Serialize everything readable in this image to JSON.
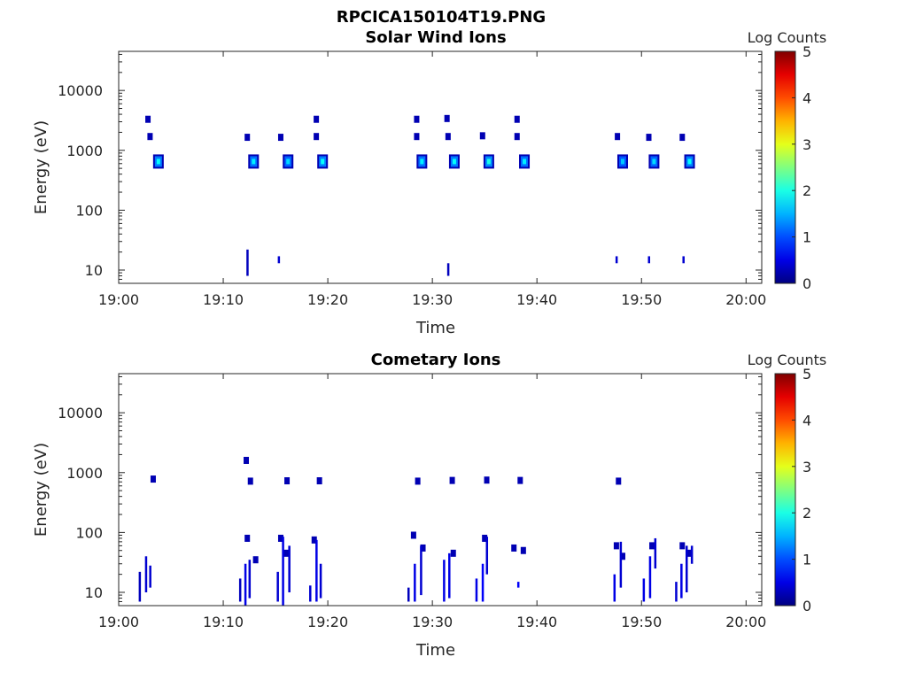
{
  "figure_title": "RPCICA150104T19.PNG",
  "colorbar_colormap": "jet",
  "chart_data": [
    {
      "type": "heatmap",
      "title": "Solar Wind Ions",
      "xlabel": "Time",
      "ylabel": "Energy (eV)",
      "yscale": "log",
      "xticks": [
        "19:00",
        "19:10",
        "19:20",
        "19:30",
        "19:40",
        "19:50",
        "20:00"
      ],
      "xlim_minutes": [
        0,
        61.5
      ],
      "yticks": [
        "10",
        "100",
        "1000",
        "10000"
      ],
      "ylim": [
        6,
        45000
      ],
      "colorbar": {
        "label": "Log Counts",
        "min": 0,
        "max": 5,
        "ticks": [
          "0",
          "1",
          "2",
          "3",
          "4",
          "5"
        ]
      },
      "clusters": [
        {
          "t": 3.0,
          "e": 1700,
          "c": 0.6
        },
        {
          "t": 3.8,
          "e": 650,
          "c": 1.9
        },
        {
          "t": 2.8,
          "e": 3300,
          "c": 0.3
        },
        {
          "t": 12.3,
          "e": 1650,
          "c": 0.5
        },
        {
          "t": 12.9,
          "e": 650,
          "c": 1.8
        },
        {
          "t": 15.5,
          "e": 1650,
          "c": 0.5
        },
        {
          "t": 16.2,
          "e": 650,
          "c": 1.7
        },
        {
          "t": 18.9,
          "e": 1700,
          "c": 0.5
        },
        {
          "t": 19.5,
          "e": 650,
          "c": 1.9
        },
        {
          "t": 18.9,
          "e": 3300,
          "c": 0.3
        },
        {
          "t": 28.5,
          "e": 1700,
          "c": 0.6
        },
        {
          "t": 29.0,
          "e": 650,
          "c": 1.8
        },
        {
          "t": 28.5,
          "e": 3300,
          "c": 0.3
        },
        {
          "t": 31.5,
          "e": 1700,
          "c": 0.6
        },
        {
          "t": 32.1,
          "e": 650,
          "c": 1.9
        },
        {
          "t": 31.4,
          "e": 3400,
          "c": 0.3
        },
        {
          "t": 34.8,
          "e": 1750,
          "c": 0.6
        },
        {
          "t": 35.4,
          "e": 650,
          "c": 2.0
        },
        {
          "t": 38.1,
          "e": 1700,
          "c": 0.6
        },
        {
          "t": 38.8,
          "e": 650,
          "c": 1.8
        },
        {
          "t": 38.1,
          "e": 3300,
          "c": 0.3
        },
        {
          "t": 47.7,
          "e": 1700,
          "c": 0.4
        },
        {
          "t": 48.2,
          "e": 650,
          "c": 1.6
        },
        {
          "t": 50.7,
          "e": 1650,
          "c": 0.5
        },
        {
          "t": 51.2,
          "e": 650,
          "c": 1.7
        },
        {
          "t": 53.9,
          "e": 1650,
          "c": 0.5
        },
        {
          "t": 54.6,
          "e": 650,
          "c": 1.9
        }
      ],
      "lines": [
        {
          "t": 12.3,
          "e1": 8,
          "e2": 22,
          "c": 0.3
        },
        {
          "t": 15.3,
          "e1": 13,
          "e2": 17,
          "c": 0.4
        },
        {
          "t": 31.5,
          "e1": 8,
          "e2": 13,
          "c": 0.3
        },
        {
          "t": 47.6,
          "e1": 13,
          "e2": 17,
          "c": 0.4
        },
        {
          "t": 50.7,
          "e1": 13,
          "e2": 17,
          "c": 0.4
        },
        {
          "t": 54.0,
          "e1": 13,
          "e2": 17,
          "c": 0.4
        }
      ]
    },
    {
      "type": "heatmap",
      "title": "Cometary Ions",
      "xlabel": "Time",
      "ylabel": "Energy (eV)",
      "yscale": "log",
      "xticks": [
        "19:00",
        "19:10",
        "19:20",
        "19:30",
        "19:40",
        "19:50",
        "20:00"
      ],
      "xlim_minutes": [
        0,
        61.5
      ],
      "yticks": [
        "10",
        "100",
        "1000",
        "10000"
      ],
      "ylim": [
        6,
        45000
      ],
      "colorbar": {
        "label": "Log Counts",
        "min": 0,
        "max": 5,
        "ticks": [
          "0",
          "1",
          "2",
          "3",
          "4",
          "5"
        ]
      },
      "clusters": [
        {
          "t": 3.3,
          "e": 780,
          "c": 0.4
        },
        {
          "t": 12.2,
          "e": 1600,
          "c": 0.3
        },
        {
          "t": 12.6,
          "e": 720,
          "c": 0.4
        },
        {
          "t": 16.1,
          "e": 730,
          "c": 0.4
        },
        {
          "t": 19.2,
          "e": 730,
          "c": 0.4
        },
        {
          "t": 28.6,
          "e": 720,
          "c": 0.3
        },
        {
          "t": 31.9,
          "e": 740,
          "c": 0.3
        },
        {
          "t": 35.2,
          "e": 750,
          "c": 0.4
        },
        {
          "t": 38.4,
          "e": 740,
          "c": 0.4
        },
        {
          "t": 47.8,
          "e": 720,
          "c": 0.3
        },
        {
          "t": 12.3,
          "e": 80,
          "c": 0.4
        },
        {
          "t": 13.1,
          "e": 35,
          "c": 0.4
        },
        {
          "t": 15.5,
          "e": 80,
          "c": 0.4
        },
        {
          "t": 16.0,
          "e": 45,
          "c": 0.5
        },
        {
          "t": 18.7,
          "e": 75,
          "c": 0.4
        },
        {
          "t": 28.2,
          "e": 90,
          "c": 0.4
        },
        {
          "t": 29.1,
          "e": 55,
          "c": 0.5
        },
        {
          "t": 32.0,
          "e": 45,
          "c": 0.5
        },
        {
          "t": 35.0,
          "e": 80,
          "c": 0.4
        },
        {
          "t": 37.8,
          "e": 55,
          "c": 0.4
        },
        {
          "t": 38.7,
          "e": 50,
          "c": 0.4
        },
        {
          "t": 47.6,
          "e": 60,
          "c": 0.4
        },
        {
          "t": 48.2,
          "e": 40,
          "c": 0.5
        },
        {
          "t": 51.0,
          "e": 60,
          "c": 0.4
        },
        {
          "t": 53.9,
          "e": 60,
          "c": 0.4
        },
        {
          "t": 54.5,
          "e": 45,
          "c": 0.5
        }
      ],
      "lines": [
        {
          "t": 2.0,
          "e1": 7,
          "e2": 22,
          "c": 0.3
        },
        {
          "t": 2.6,
          "e1": 10,
          "e2": 40,
          "c": 0.4
        },
        {
          "t": 3.0,
          "e1": 12,
          "e2": 28,
          "c": 0.4
        },
        {
          "t": 11.6,
          "e1": 7,
          "e2": 17,
          "c": 0.3
        },
        {
          "t": 12.1,
          "e1": 6,
          "e2": 30,
          "c": 0.5
        },
        {
          "t": 12.5,
          "e1": 8,
          "e2": 35,
          "c": 0.4
        },
        {
          "t": 15.2,
          "e1": 7,
          "e2": 22,
          "c": 0.4
        },
        {
          "t": 15.7,
          "e1": 6,
          "e2": 85,
          "c": 0.5
        },
        {
          "t": 16.3,
          "e1": 10,
          "e2": 60,
          "c": 0.4
        },
        {
          "t": 18.3,
          "e1": 7,
          "e2": 13,
          "c": 0.4
        },
        {
          "t": 18.9,
          "e1": 7,
          "e2": 75,
          "c": 0.5
        },
        {
          "t": 19.3,
          "e1": 8,
          "e2": 30,
          "c": 0.4
        },
        {
          "t": 27.7,
          "e1": 7,
          "e2": 12,
          "c": 0.3
        },
        {
          "t": 28.3,
          "e1": 7,
          "e2": 30,
          "c": 0.5
        },
        {
          "t": 28.9,
          "e1": 9,
          "e2": 60,
          "c": 0.4
        },
        {
          "t": 31.1,
          "e1": 7,
          "e2": 35,
          "c": 0.5
        },
        {
          "t": 31.6,
          "e1": 8,
          "e2": 45,
          "c": 0.5
        },
        {
          "t": 34.2,
          "e1": 7,
          "e2": 17,
          "c": 0.5
        },
        {
          "t": 34.8,
          "e1": 7,
          "e2": 30,
          "c": 0.6
        },
        {
          "t": 35.2,
          "e1": 20,
          "e2": 85,
          "c": 0.4
        },
        {
          "t": 38.2,
          "e1": 12,
          "e2": 15,
          "c": 0.6
        },
        {
          "t": 47.4,
          "e1": 7,
          "e2": 20,
          "c": 0.5
        },
        {
          "t": 48.0,
          "e1": 12,
          "e2": 70,
          "c": 0.4
        },
        {
          "t": 50.2,
          "e1": 7,
          "e2": 17,
          "c": 0.5
        },
        {
          "t": 50.8,
          "e1": 8,
          "e2": 40,
          "c": 0.5
        },
        {
          "t": 51.3,
          "e1": 25,
          "e2": 80,
          "c": 0.4
        },
        {
          "t": 53.3,
          "e1": 7,
          "e2": 15,
          "c": 0.4
        },
        {
          "t": 53.8,
          "e1": 8,
          "e2": 30,
          "c": 0.5
        },
        {
          "t": 54.3,
          "e1": 10,
          "e2": 60,
          "c": 0.4
        },
        {
          "t": 54.8,
          "e1": 30,
          "e2": 60,
          "c": 0.4
        }
      ]
    }
  ]
}
